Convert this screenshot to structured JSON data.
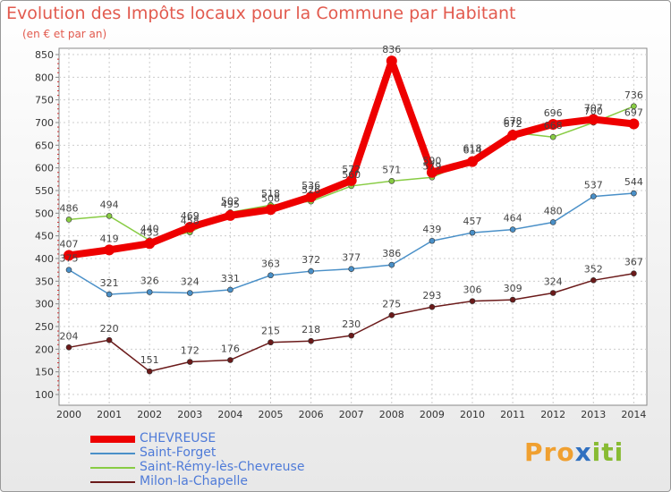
{
  "chart_data": {
    "type": "line",
    "title": "Evolution des Impôts locaux pour la Commune par Habitant",
    "subtitle": "(en € et par an)",
    "xlabel": "",
    "ylabel": "",
    "ylim": [
      100,
      850
    ],
    "yticks": [
      "100",
      "150",
      "200",
      "250",
      "300",
      "350",
      "400",
      "450",
      "500",
      "550",
      "600",
      "650",
      "700",
      "750",
      "800",
      "850"
    ],
    "categories": [
      "2000",
      "2001",
      "2002",
      "2003",
      "2004",
      "2005",
      "2006",
      "2007",
      "2008",
      "2009",
      "2010",
      "2011",
      "2012",
      "2013",
      "2014"
    ],
    "series": [
      {
        "name": "CHEVREUSE",
        "color": "#ee0000",
        "values": [
          407,
          419,
          433,
          469,
          495,
          508,
          536,
          572,
          836,
          590,
          614,
          672,
          696,
          707,
          697
        ],
        "labels": [
          "407",
          "419",
          "433",
          "469",
          "495",
          "508",
          "536",
          "572",
          "836",
          "590",
          "614",
          "672",
          "696",
          "707",
          "697"
        ]
      },
      {
        "name": "Saint-Forget",
        "color": "#4a90c8",
        "values": [
          375,
          321,
          326,
          324,
          331,
          363,
          372,
          377,
          386,
          439,
          457,
          464,
          480,
          537,
          544
        ],
        "labels": [
          "375",
          "321",
          "326",
          "324",
          "331",
          "363",
          "372",
          "377",
          "386",
          "439",
          "457",
          "464",
          "480",
          "537",
          "544"
        ]
      },
      {
        "name": "Saint-Rémy-lès-Chevreuse",
        "color": "#88cc44",
        "values": [
          486,
          494,
          440,
          458,
          502,
          518,
          526,
          560,
          571,
          579,
          618,
          678,
          668,
          700,
          736
        ],
        "labels": [
          "486",
          "494",
          "440",
          "458",
          "502",
          "518",
          "526",
          "560",
          "571",
          "579",
          "618",
          "678",
          "668",
          "700",
          "736"
        ]
      },
      {
        "name": "Milon-la-Chapelle",
        "color": "#6b1a1a",
        "values": [
          204,
          220,
          151,
          172,
          176,
          215,
          218,
          230,
          275,
          293,
          306,
          309,
          324,
          352,
          367
        ],
        "labels": [
          "204",
          "220",
          "151",
          "172",
          "176",
          "215",
          "218",
          "230",
          "275",
          "293",
          "306",
          "309",
          "324",
          "352",
          "367"
        ]
      }
    ]
  },
  "logo": {
    "p1": "Pro",
    "x": "x",
    "p2": "iti"
  }
}
